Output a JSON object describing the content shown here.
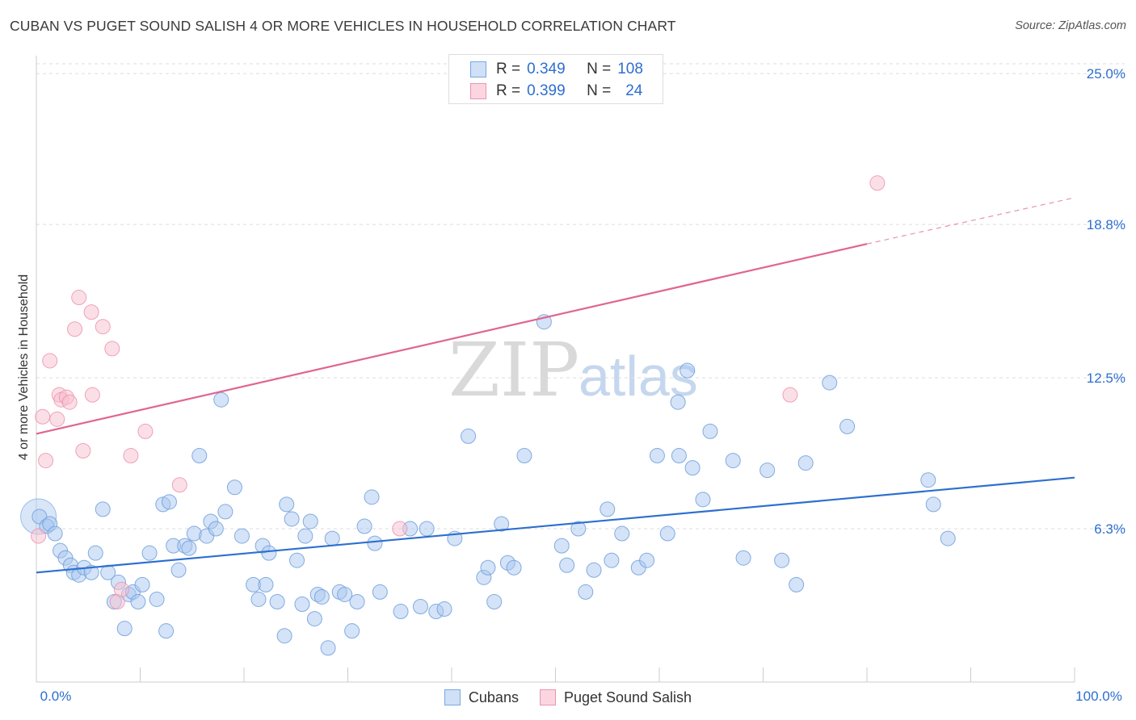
{
  "header": {
    "title": "CUBAN VS PUGET SOUND SALISH 4 OR MORE VEHICLES IN HOUSEHOLD CORRELATION CHART",
    "source": "Source: ZipAtlas.com"
  },
  "watermark": {
    "zip": "ZIP",
    "atlas": "atlas"
  },
  "legend": {
    "rows": [
      {
        "r_label": "R =",
        "r_value": "0.349",
        "n_label": "N =",
        "n_value": "108",
        "color": "#a9c8f0",
        "border": "#7aa8e0"
      },
      {
        "r_label": "R =",
        "r_value": "0.399",
        "n_label": "N =",
        "n_value": "24",
        "color": "#f7bfd0",
        "border": "#ec93ae"
      }
    ]
  },
  "chart_data": {
    "type": "scatter",
    "title": "CUBAN VS PUGET SOUND SALISH 4 OR MORE VEHICLES IN HOUSEHOLD CORRELATION CHART",
    "xlabel": "",
    "ylabel": "4 or more Vehicles in Household",
    "xlim": [
      0,
      100
    ],
    "ylim": [
      0,
      25.6
    ],
    "x_ticks": [
      "0.0%",
      "100.0%"
    ],
    "y_ticks": [
      {
        "value": 6.3,
        "label": "6.3%"
      },
      {
        "value": 12.5,
        "label": "12.5%"
      },
      {
        "value": 18.8,
        "label": "18.8%"
      },
      {
        "value": 25.0,
        "label": "25.0%"
      }
    ],
    "grid": "horizontal-dashed",
    "legend_position": "bottom",
    "series": [
      {
        "name": "Cubans",
        "fill": "#a9c8f0",
        "stroke": "#6f9fdc",
        "trend": {
          "x0": 0,
          "y0": 4.5,
          "x1": 100,
          "y1": 8.4,
          "color": "#2d6fce"
        },
        "points": [
          [
            0.3,
            6.8
          ],
          [
            1.0,
            6.4
          ],
          [
            1.3,
            6.5
          ],
          [
            1.8,
            6.1
          ],
          [
            2.3,
            5.4
          ],
          [
            2.8,
            5.1
          ],
          [
            3.3,
            4.8
          ],
          [
            3.6,
            4.5
          ],
          [
            4.1,
            4.4
          ],
          [
            4.6,
            4.7
          ],
          [
            5.3,
            4.5
          ],
          [
            5.7,
            5.3
          ],
          [
            6.4,
            7.1
          ],
          [
            6.9,
            4.5
          ],
          [
            7.5,
            3.3
          ],
          [
            7.9,
            4.1
          ],
          [
            8.5,
            2.2
          ],
          [
            8.9,
            3.6
          ],
          [
            9.3,
            3.7
          ],
          [
            9.8,
            3.3
          ],
          [
            10.2,
            4.0
          ],
          [
            10.9,
            5.3
          ],
          [
            11.6,
            3.4
          ],
          [
            12.2,
            7.3
          ],
          [
            12.5,
            2.1
          ],
          [
            12.8,
            7.4
          ],
          [
            13.2,
            5.6
          ],
          [
            13.7,
            4.6
          ],
          [
            14.3,
            5.6
          ],
          [
            14.7,
            5.5
          ],
          [
            15.2,
            6.1
          ],
          [
            15.7,
            9.3
          ],
          [
            16.4,
            6.0
          ],
          [
            16.8,
            6.6
          ],
          [
            17.3,
            6.3
          ],
          [
            17.8,
            11.6
          ],
          [
            18.2,
            7.0
          ],
          [
            19.1,
            8.0
          ],
          [
            19.8,
            6.0
          ],
          [
            20.9,
            4.0
          ],
          [
            21.4,
            3.4
          ],
          [
            21.8,
            5.6
          ],
          [
            22.1,
            4.0
          ],
          [
            22.4,
            5.3
          ],
          [
            23.2,
            3.3
          ],
          [
            23.9,
            1.9
          ],
          [
            24.1,
            7.3
          ],
          [
            24.6,
            6.7
          ],
          [
            25.1,
            5.0
          ],
          [
            25.6,
            3.2
          ],
          [
            25.9,
            6.0
          ],
          [
            26.4,
            6.6
          ],
          [
            26.8,
            2.6
          ],
          [
            27.1,
            3.6
          ],
          [
            27.5,
            3.5
          ],
          [
            28.1,
            1.4
          ],
          [
            28.5,
            5.9
          ],
          [
            29.2,
            3.7
          ],
          [
            29.7,
            3.6
          ],
          [
            30.4,
            2.1
          ],
          [
            30.9,
            3.3
          ],
          [
            31.6,
            6.4
          ],
          [
            32.3,
            7.6
          ],
          [
            32.6,
            5.7
          ],
          [
            33.1,
            3.7
          ],
          [
            35.1,
            2.9
          ],
          [
            36.0,
            6.3
          ],
          [
            37.0,
            3.1
          ],
          [
            37.6,
            6.3
          ],
          [
            38.5,
            2.9
          ],
          [
            39.3,
            3.0
          ],
          [
            40.3,
            5.9
          ],
          [
            41.6,
            10.1
          ],
          [
            43.1,
            4.3
          ],
          [
            43.5,
            4.7
          ],
          [
            44.1,
            3.3
          ],
          [
            44.8,
            6.5
          ],
          [
            45.4,
            4.9
          ],
          [
            46.0,
            4.7
          ],
          [
            47.0,
            9.3
          ],
          [
            48.9,
            14.8
          ],
          [
            50.6,
            5.6
          ],
          [
            51.1,
            4.8
          ],
          [
            52.2,
            6.3
          ],
          [
            52.9,
            3.7
          ],
          [
            53.7,
            4.6
          ],
          [
            55.0,
            7.1
          ],
          [
            55.4,
            5.0
          ],
          [
            56.4,
            6.1
          ],
          [
            58.0,
            4.7
          ],
          [
            58.8,
            5.0
          ],
          [
            59.8,
            9.3
          ],
          [
            60.8,
            6.1
          ],
          [
            61.8,
            11.5
          ],
          [
            61.9,
            9.3
          ],
          [
            62.7,
            12.8
          ],
          [
            63.2,
            8.8
          ],
          [
            64.2,
            7.5
          ],
          [
            64.9,
            10.3
          ],
          [
            67.1,
            9.1
          ],
          [
            68.1,
            5.1
          ],
          [
            70.4,
            8.7
          ],
          [
            71.8,
            5.0
          ],
          [
            73.2,
            4.0
          ],
          [
            74.1,
            9.0
          ],
          [
            76.4,
            12.3
          ],
          [
            78.1,
            10.5
          ],
          [
            85.9,
            8.3
          ],
          [
            86.4,
            7.3
          ],
          [
            87.8,
            5.9
          ]
        ]
      },
      {
        "name": "Puget Sound Salish",
        "fill": "#f7bfd0",
        "stroke": "#ec93ae",
        "trend": {
          "x0": 0,
          "y0": 10.2,
          "x1": 80,
          "y1": 18.0,
          "color": "#e0658f",
          "dashed_to": {
            "x": 100,
            "y": 19.9
          }
        },
        "points": [
          [
            0.2,
            6.0
          ],
          [
            0.6,
            10.9
          ],
          [
            0.9,
            9.1
          ],
          [
            1.3,
            13.2
          ],
          [
            2.0,
            10.8
          ],
          [
            2.2,
            11.8
          ],
          [
            2.4,
            11.6
          ],
          [
            2.9,
            11.7
          ],
          [
            3.2,
            11.5
          ],
          [
            3.7,
            14.5
          ],
          [
            4.1,
            15.8
          ],
          [
            4.5,
            9.5
          ],
          [
            5.3,
            15.2
          ],
          [
            5.4,
            11.8
          ],
          [
            6.4,
            14.6
          ],
          [
            7.3,
            13.7
          ],
          [
            7.8,
            3.3
          ],
          [
            8.2,
            3.8
          ],
          [
            9.1,
            9.3
          ],
          [
            10.5,
            10.3
          ],
          [
            13.8,
            8.1
          ],
          [
            35.0,
            6.3
          ],
          [
            72.6,
            11.8
          ],
          [
            81.0,
            20.5
          ]
        ]
      }
    ]
  },
  "bottom_legend": [
    "Cubans",
    "Puget Sound Salish"
  ]
}
